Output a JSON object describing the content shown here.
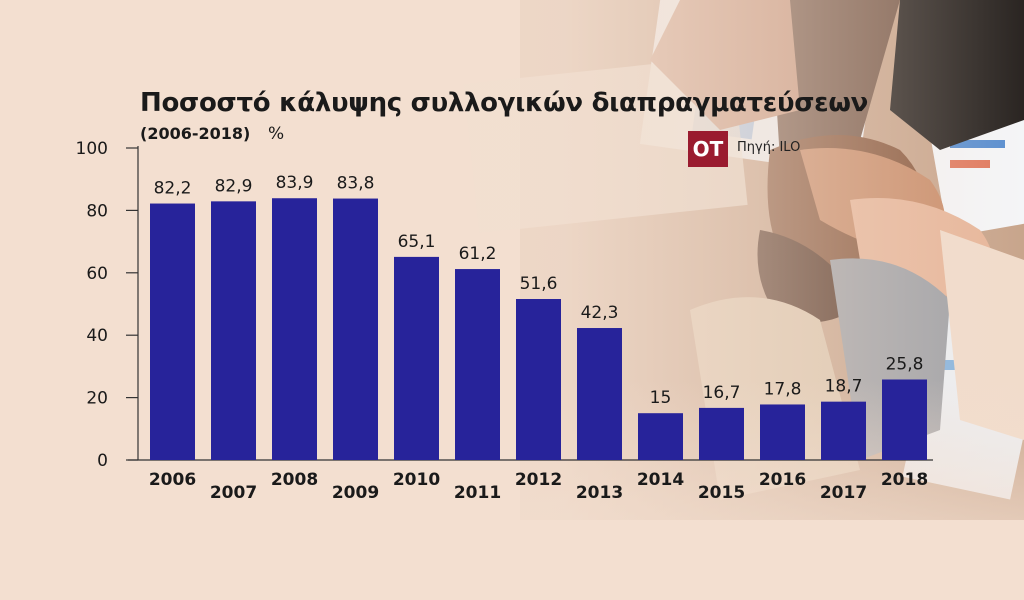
{
  "header": {
    "title": "Ποσοστό κάλυψης συλλογικών διαπραγματεύσεων",
    "subtitle": "(2006-2018)",
    "unit": "%"
  },
  "brand": {
    "logo_text": "ΟΤ",
    "source": "Πηγή: ILO"
  },
  "colors": {
    "bar": "#27239a",
    "axis": "#333333",
    "brand": "#9a1b2f"
  },
  "chart_data": {
    "type": "bar",
    "title": "Ποσοστό κάλυψης συλλογικών διαπραγματεύσεων",
    "subtitle": "(2006-2018)",
    "ylabel": "%",
    "xlabel": "",
    "categories": [
      "2006",
      "2007",
      "2008",
      "2009",
      "2010",
      "2011",
      "2012",
      "2013",
      "2014",
      "2015",
      "2016",
      "2017",
      "2018"
    ],
    "values": [
      82.2,
      82.9,
      83.9,
      83.8,
      65.1,
      61.2,
      51.6,
      42.3,
      15,
      16.7,
      17.8,
      18.7,
      25.8
    ],
    "value_labels": [
      "82,2",
      "82,9",
      "83,9",
      "83,8",
      "65,1",
      "61,2",
      "51,6",
      "42,3",
      "15",
      "16,7",
      "17,8",
      "18,7",
      "25,8"
    ],
    "ylim": [
      0,
      100
    ],
    "yticks": [
      "0",
      "20",
      "40",
      "60",
      "80",
      "100"
    ],
    "grid": false,
    "legend": "none"
  }
}
